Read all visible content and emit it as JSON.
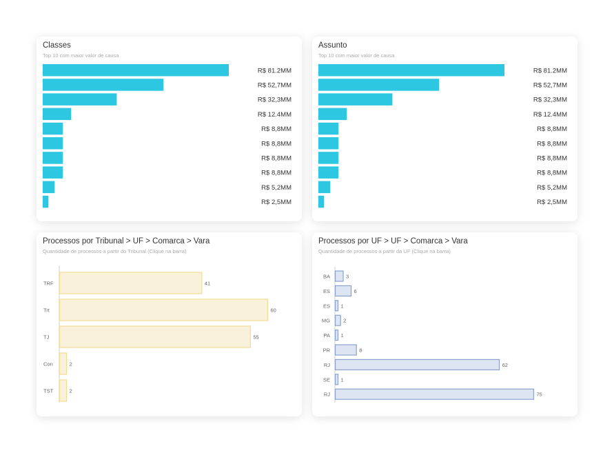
{
  "colors": {
    "bar_teal": "#2ec7e2",
    "bar_yellow_fill": "#faf1db",
    "bar_yellow_stroke": "#f2dc95",
    "bar_blue_fill": "#dde4f2",
    "bar_blue_stroke": "#8aa2cd",
    "axis": "#cccccc"
  },
  "chart_data": [
    {
      "type": "bar",
      "orientation": "horizontal",
      "title": "Classes",
      "subtitle": "Top 10 com maior valor de causa",
      "values": [
        81.2,
        52.7,
        32.3,
        12.4,
        8.8,
        8.8,
        8.8,
        8.8,
        5.2,
        2.5
      ],
      "value_labels": [
        "R$ 81.2MM",
        "R$ 52,7MM",
        "R$ 32,3MM",
        "R$ 12.4MM",
        "R$ 8,8MM",
        "R$ 8,8MM",
        "R$ 8,8MM",
        "R$ 8,8MM",
        "R$ 5,2MM",
        "R$ 2,5MM"
      ],
      "xlim": [
        0,
        81.2
      ]
    },
    {
      "type": "bar",
      "orientation": "horizontal",
      "title": "Assunto",
      "subtitle": "Top 10 com maior valor de causa",
      "values": [
        81.2,
        52.7,
        32.3,
        12.4,
        8.8,
        8.8,
        8.8,
        8.8,
        5.2,
        2.5
      ],
      "value_labels": [
        "R$ 81.2MM",
        "R$ 52,7MM",
        "R$ 32,3MM",
        "R$ 12.4MM",
        "R$ 8,8MM",
        "R$ 8,8MM",
        "R$ 8,8MM",
        "R$ 8,8MM",
        "R$ 5,2MM",
        "R$ 2,5MM"
      ],
      "xlim": [
        0,
        81.2
      ]
    },
    {
      "type": "bar",
      "orientation": "horizontal",
      "title": "Processos por Tribunal > UF > Comarca > Vara",
      "subtitle": "Quantidade de processos a partir do Tribunal (Clique na barra)",
      "categories": [
        "TRF",
        "Trt",
        "TJ",
        "Con",
        "TST"
      ],
      "values": [
        41,
        60,
        55,
        2,
        2
      ],
      "xlim": [
        0,
        60
      ]
    },
    {
      "type": "bar",
      "orientation": "horizontal",
      "title": "Processos por UF > UF > Comarca > Vara",
      "subtitle": "Quantidade de processos a partir da UF (Clique na barra)",
      "categories": [
        "BA",
        "ES",
        "ES",
        "MG",
        "PA",
        "PR",
        "RJ",
        "SE",
        "RJ"
      ],
      "values": [
        3,
        6,
        1,
        2,
        1,
        8,
        62,
        1,
        75
      ],
      "xlim": [
        0,
        75
      ]
    }
  ]
}
